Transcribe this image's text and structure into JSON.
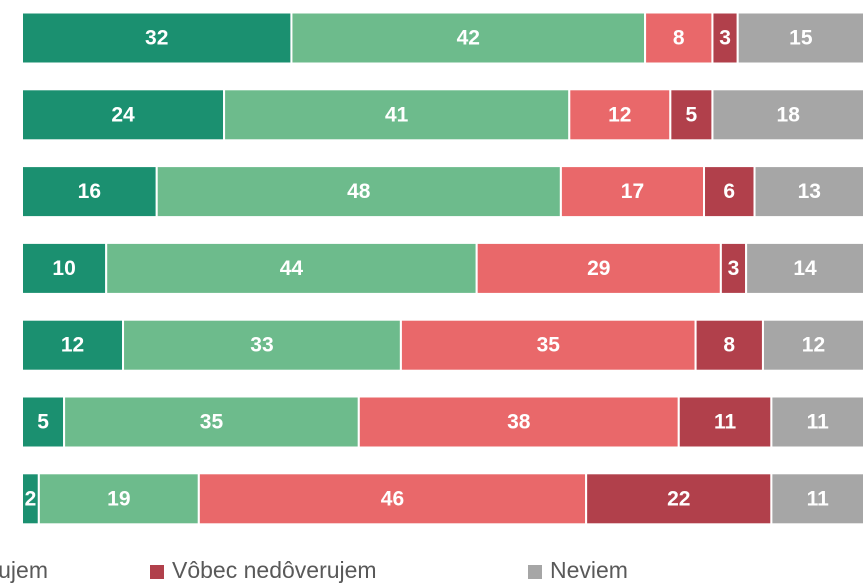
{
  "chart_data": {
    "type": "stacked-bar-horizontal",
    "series": [
      {
        "color": "#1b9070",
        "values": [
          32,
          24,
          16,
          10,
          12,
          5,
          2
        ]
      },
      {
        "color": "#6dbb8c",
        "values": [
          42,
          41,
          48,
          44,
          33,
          35,
          19
        ]
      },
      {
        "name": "ujem",
        "color": "#e9686a",
        "values": [
          8,
          12,
          17,
          29,
          35,
          38,
          46
        ]
      },
      {
        "name": "Vôbec nedôverujem",
        "color": "#b1404b",
        "values": [
          3,
          5,
          6,
          3,
          8,
          11,
          22
        ]
      },
      {
        "name": "Neviem",
        "color": "#a6a6a6",
        "values": [
          15,
          18,
          13,
          14,
          12,
          11,
          11
        ]
      }
    ]
  }
}
